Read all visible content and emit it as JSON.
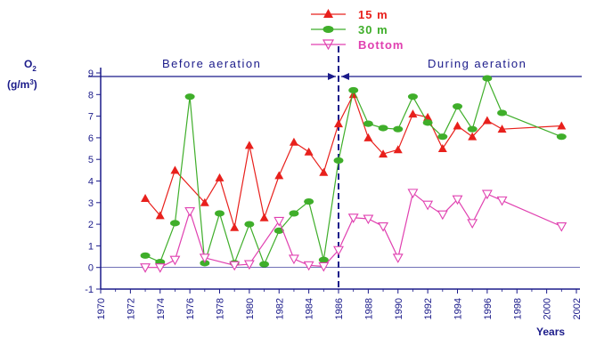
{
  "chart_data": {
    "type": "line",
    "title": "",
    "ylabel_main": "O",
    "ylabel_sub": "2",
    "ylabel_unit": "(g/m",
    "ylabel_unit_sup": "3",
    "ylabel_unit_end": ")",
    "xlabel": "Years",
    "xlim": [
      1970,
      2002
    ],
    "ylim": [
      -1,
      9
    ],
    "x_ticks": [
      "1970",
      "1972",
      "1974",
      "1976",
      "1978",
      "1980",
      "1982",
      "1984",
      "1986",
      "1988",
      "1990",
      "1992",
      "1994",
      "1996",
      "1998",
      "2000",
      "2002"
    ],
    "y_ticks": [
      "-1",
      "0",
      "1",
      "2",
      "3",
      "4",
      "5",
      "6",
      "7",
      "8",
      "9"
    ],
    "legend_placement": "top-center",
    "divider_year": 1986,
    "phases": [
      {
        "label": "Before aeration"
      },
      {
        "label": "During aeration"
      }
    ],
    "series": [
      {
        "name": "15 m",
        "color": "#e8201c",
        "marker": "triangle-up",
        "points": [
          [
            1973,
            3.2
          ],
          [
            1974,
            2.4
          ],
          [
            1975,
            4.5
          ],
          [
            1977,
            3.0
          ],
          [
            1978,
            4.15
          ],
          [
            1979,
            1.85
          ],
          [
            1980,
            5.65
          ],
          [
            1981,
            2.3
          ],
          [
            1982,
            4.25
          ],
          [
            1983,
            5.8
          ],
          [
            1984,
            5.35
          ],
          [
            1985,
            4.4
          ],
          [
            1986,
            6.65
          ],
          [
            1987,
            8.0
          ],
          [
            1988,
            6.0
          ],
          [
            1989,
            5.25
          ],
          [
            1990,
            5.45
          ],
          [
            1991,
            7.1
          ],
          [
            1992,
            6.95
          ],
          [
            1993,
            5.5
          ],
          [
            1994,
            6.55
          ],
          [
            1995,
            6.05
          ],
          [
            1996,
            6.8
          ],
          [
            1997,
            6.4
          ],
          [
            2001,
            6.55
          ]
        ]
      },
      {
        "name": "30 m",
        "color": "#3fae2a",
        "marker": "circle",
        "points": [
          [
            1973,
            0.55
          ],
          [
            1974,
            0.25
          ],
          [
            1975,
            2.05
          ],
          [
            1976,
            7.9
          ],
          [
            1977,
            0.2
          ],
          [
            1978,
            2.5
          ],
          [
            1979,
            0.2
          ],
          [
            1980,
            2.0
          ],
          [
            1981,
            0.15
          ],
          [
            1982,
            1.7
          ],
          [
            1983,
            2.5
          ],
          [
            1984,
            3.05
          ],
          [
            1985,
            0.35
          ],
          [
            1986,
            4.95
          ],
          [
            1987,
            8.2
          ],
          [
            1988,
            6.65
          ],
          [
            1989,
            6.45
          ],
          [
            1990,
            6.4
          ],
          [
            1991,
            7.9
          ],
          [
            1992,
            6.7
          ],
          [
            1993,
            6.05
          ],
          [
            1994,
            7.45
          ],
          [
            1995,
            6.4
          ],
          [
            1996,
            8.75
          ],
          [
            1997,
            7.15
          ],
          [
            2001,
            6.05
          ]
        ]
      },
      {
        "name": "Bottom",
        "color": "#e040b0",
        "marker": "triangle-down",
        "points": [
          [
            1973,
            0.0
          ],
          [
            1974,
            0.0
          ],
          [
            1975,
            0.35
          ],
          [
            1976,
            2.6
          ],
          [
            1977,
            0.45
          ],
          [
            1979,
            0.1
          ],
          [
            1980,
            0.15
          ],
          [
            1982,
            2.15
          ],
          [
            1983,
            0.4
          ],
          [
            1984,
            0.1
          ],
          [
            1985,
            0.05
          ],
          [
            1986,
            0.8
          ],
          [
            1987,
            2.3
          ],
          [
            1988,
            2.25
          ],
          [
            1989,
            1.9
          ],
          [
            1990,
            0.45
          ],
          [
            1991,
            3.45
          ],
          [
            1992,
            2.9
          ],
          [
            1993,
            2.45
          ],
          [
            1994,
            3.15
          ],
          [
            1995,
            2.05
          ],
          [
            1996,
            3.4
          ],
          [
            1997,
            3.1
          ],
          [
            2001,
            1.9
          ]
        ]
      }
    ]
  }
}
